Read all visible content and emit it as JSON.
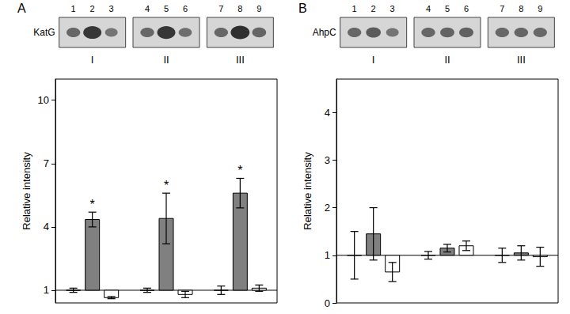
{
  "chart_data": [
    {
      "type": "bar",
      "panel": "A",
      "blot": {
        "label": "KatG",
        "lanes": [
          "1",
          "2",
          "3",
          "4",
          "5",
          "6",
          "7",
          "8",
          "9"
        ]
      },
      "categories": [
        "I",
        "II",
        "III"
      ],
      "baseline": 1,
      "ylabel": "Relative intensity",
      "ylim": [
        0.4,
        11
      ],
      "yticks": [
        1,
        4,
        7,
        10
      ],
      "grid": false,
      "series": [
        {
          "color": "#ffffff",
          "values": [
            1,
            1,
            1
          ],
          "errors": [
            0.1,
            0.1,
            0.2
          ]
        },
        {
          "color": "#808080",
          "values": [
            4.35,
            4.4,
            5.6
          ],
          "errors": [
            0.35,
            1.2,
            0.7
          ],
          "significance": [
            "*",
            "*",
            "*"
          ]
        },
        {
          "color": "#ffffff",
          "values": [
            0.65,
            0.8,
            1.1
          ],
          "errors": [
            0.05,
            0.15,
            0.15
          ]
        }
      ]
    },
    {
      "type": "bar",
      "panel": "B",
      "blot": {
        "label": "AhpC",
        "lanes": [
          "1",
          "2",
          "3",
          "4",
          "5",
          "6",
          "7",
          "8",
          "9"
        ]
      },
      "categories": [
        "I",
        "II",
        "III"
      ],
      "baseline": 1,
      "ylabel": "Relative intensity",
      "ylim": [
        0,
        4.7
      ],
      "yticks": [
        0,
        1,
        2,
        3,
        4
      ],
      "grid": false,
      "series": [
        {
          "color": "#ffffff",
          "values": [
            1,
            1,
            1
          ],
          "errors": [
            0.5,
            0.08,
            0.15
          ]
        },
        {
          "color": "#808080",
          "values": [
            1.45,
            1.15,
            1.05
          ],
          "errors": [
            0.55,
            0.08,
            0.15
          ]
        },
        {
          "color": "#ffffff",
          "values": [
            0.65,
            1.2,
            0.97
          ],
          "errors": [
            0.2,
            0.1,
            0.2
          ]
        }
      ]
    }
  ]
}
